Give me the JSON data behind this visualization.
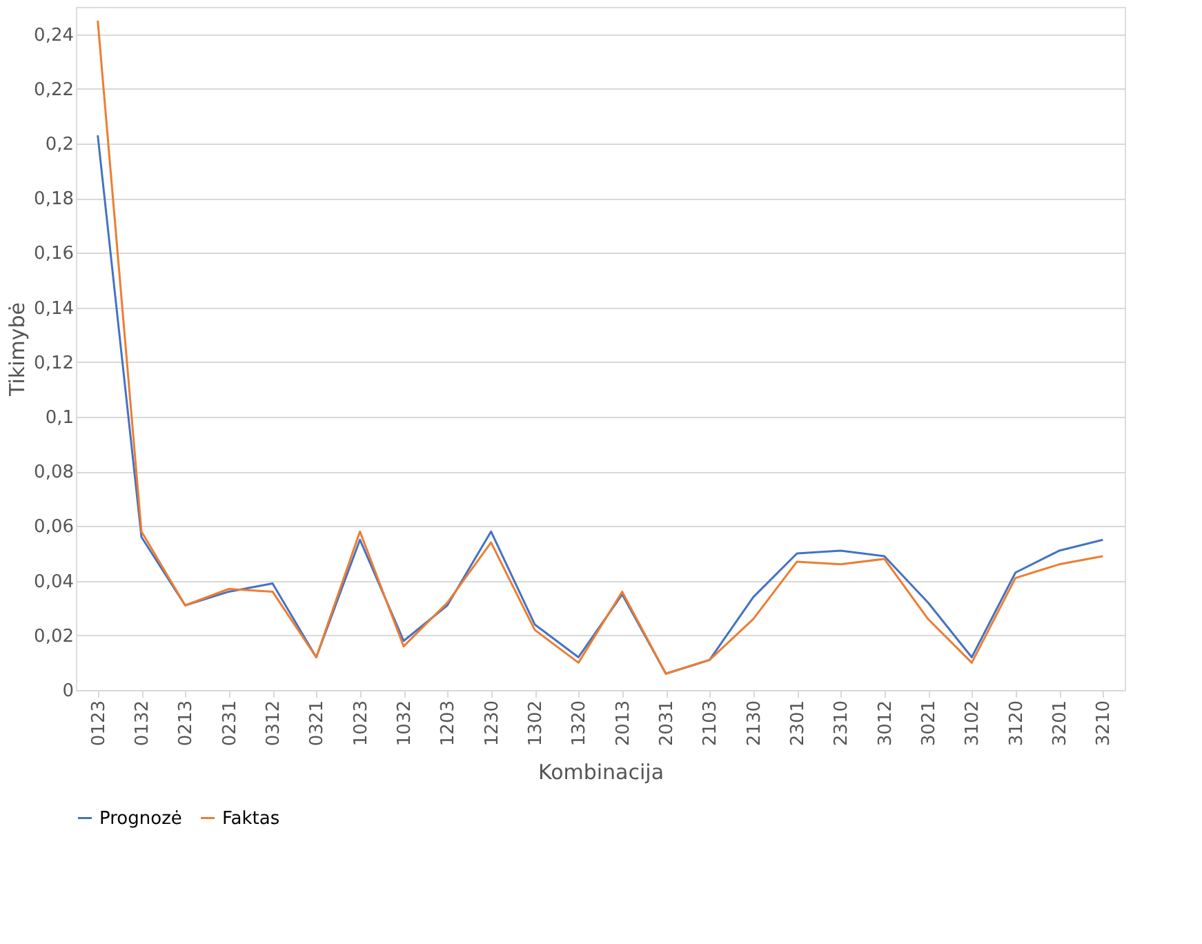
{
  "chart_data": {
    "type": "line",
    "xlabel": "Kombinacija",
    "ylabel": "Tikimybė",
    "categories": [
      "0123",
      "0132",
      "0213",
      "0231",
      "0312",
      "0321",
      "1023",
      "1032",
      "1203",
      "1230",
      "1302",
      "1320",
      "2013",
      "2031",
      "2103",
      "2130",
      "2301",
      "2310",
      "3012",
      "3021",
      "3102",
      "3120",
      "3201",
      "3210"
    ],
    "series": [
      {
        "name": "Prognozė",
        "color": "#4472c4",
        "values": [
          0.203,
          0.056,
          0.031,
          0.036,
          0.039,
          0.012,
          0.055,
          0.018,
          0.031,
          0.058,
          0.024,
          0.012,
          0.035,
          0.006,
          0.011,
          0.034,
          0.05,
          0.051,
          0.049,
          0.032,
          0.012,
          0.043,
          0.051,
          0.055
        ]
      },
      {
        "name": "Faktas",
        "color": "#ed7d31",
        "values": [
          0.245,
          0.058,
          0.031,
          0.037,
          0.036,
          0.012,
          0.058,
          0.016,
          0.032,
          0.054,
          0.022,
          0.01,
          0.036,
          0.006,
          0.011,
          0.026,
          0.047,
          0.046,
          0.048,
          0.026,
          0.01,
          0.041,
          0.046,
          0.049
        ]
      }
    ],
    "ylim": [
      0,
      0.25
    ],
    "yticks": [
      0,
      {
        "value": 0.02,
        "label": "0,02"
      },
      {
        "value": 0.04,
        "label": "0,04"
      },
      {
        "value": 0.06,
        "label": "0,06"
      },
      {
        "value": 0.08,
        "label": "0,08"
      },
      {
        "value": 0.1,
        "label": "0,1"
      },
      {
        "value": 0.12,
        "label": "0,12"
      },
      {
        "value": 0.14,
        "label": "0,14"
      },
      {
        "value": 0.16,
        "label": "0,16"
      },
      {
        "value": 0.18,
        "label": "0,18"
      },
      {
        "value": 0.2,
        "label": "0,2"
      },
      {
        "value": 0.22,
        "label": "0,22"
      },
      {
        "value": 0.24,
        "label": "0,24"
      }
    ],
    "grid": "y",
    "legend": "bottom",
    "marker": "none",
    "line_style": "solid"
  }
}
